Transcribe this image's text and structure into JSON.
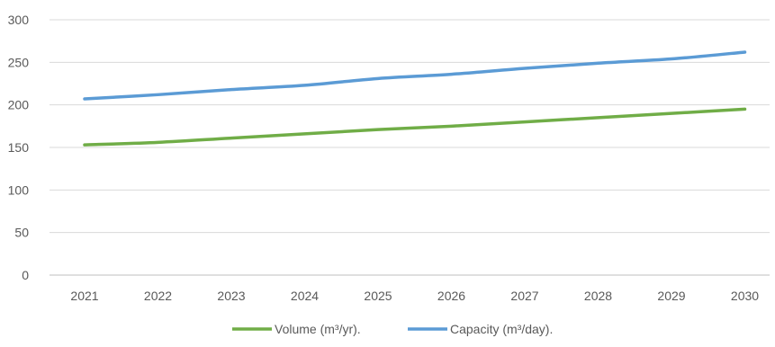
{
  "chart_data": {
    "type": "line",
    "title": "",
    "xlabel": "",
    "ylabel": "",
    "categories": [
      "2021",
      "2022",
      "2023",
      "2024",
      "2025",
      "2026",
      "2027",
      "2028",
      "2029",
      "2030"
    ],
    "ylim": [
      0,
      300
    ],
    "yticks": [
      0,
      50,
      100,
      150,
      200,
      250,
      300
    ],
    "grid": "horizontal",
    "legend_position": "bottom",
    "series": [
      {
        "name": "Volume (m³/yr).",
        "color": "#70ad47",
        "values": [
          153,
          156,
          161,
          166,
          171,
          175,
          180,
          185,
          190,
          195
        ]
      },
      {
        "name": "Capacity (m³/day).",
        "color": "#5b9bd5",
        "values": [
          207,
          212,
          218,
          223,
          231,
          236,
          243,
          249,
          254,
          262
        ]
      }
    ]
  }
}
